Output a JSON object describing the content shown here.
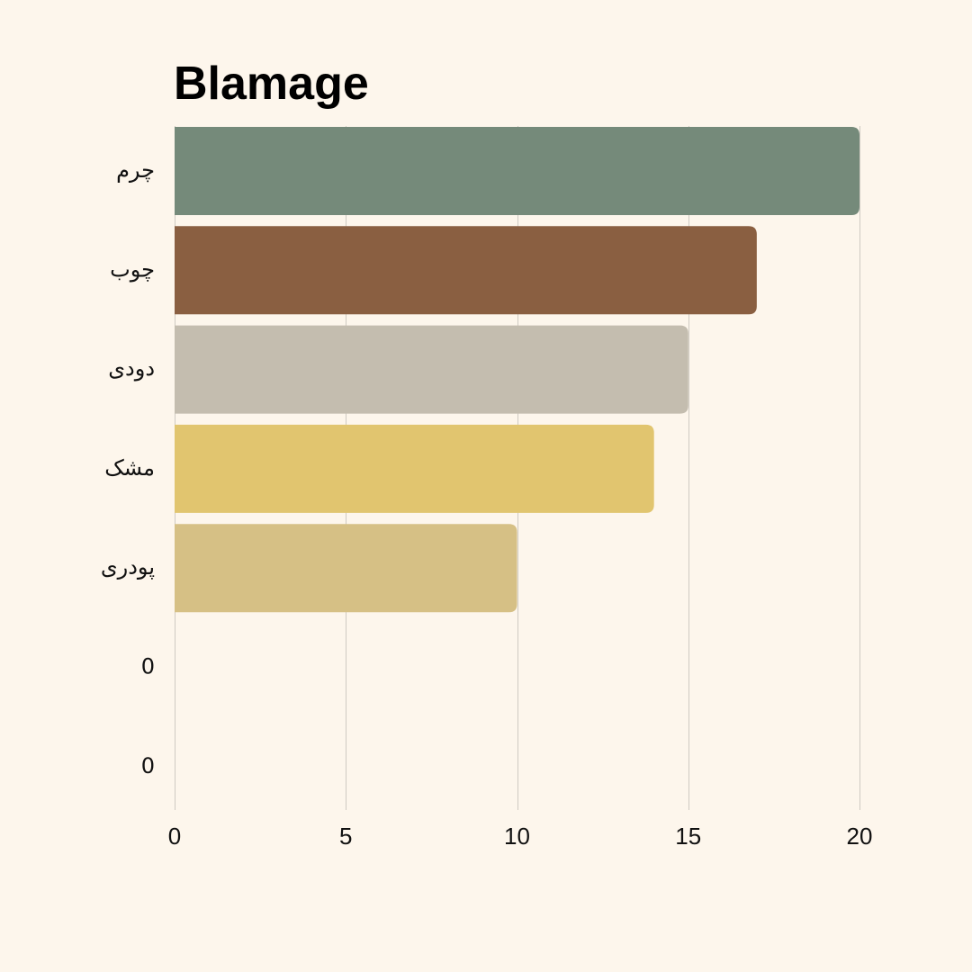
{
  "chart_data": {
    "type": "bar",
    "orientation": "horizontal",
    "title": "Blamage",
    "categories": [
      "چرم",
      "چوب",
      "دودی",
      "مشک",
      "پودری",
      "0",
      "0"
    ],
    "values": [
      20,
      17,
      15,
      14,
      10,
      0,
      0
    ],
    "colors": [
      "#758a7a",
      "#8a5f41",
      "#c4bdaf",
      "#e1c56f",
      "#d6c085",
      "#d6c085",
      "#d6c085"
    ],
    "xlim": [
      0,
      20
    ],
    "xticks": [
      0,
      5,
      10,
      15,
      20
    ],
    "xlabel": "",
    "ylabel": "",
    "grid": "vertical",
    "legend": "none"
  }
}
